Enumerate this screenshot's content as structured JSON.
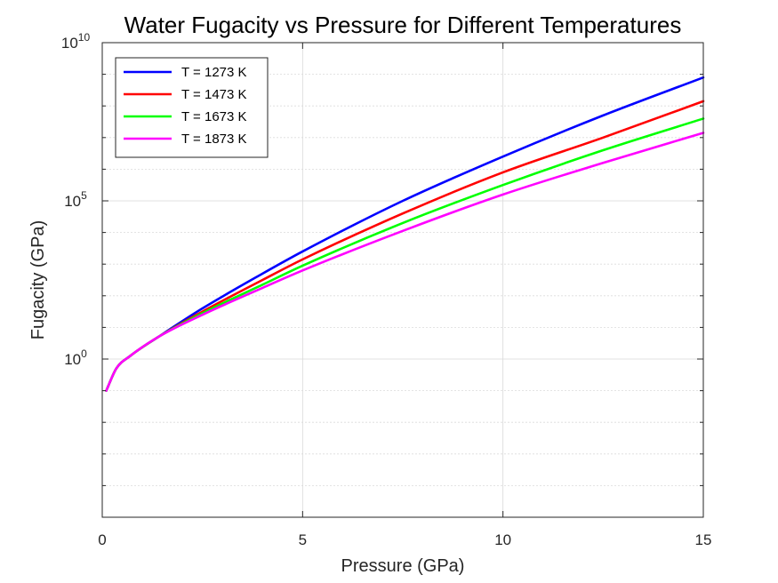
{
  "chart_data": {
    "type": "line",
    "title": "Water Fugacity vs Pressure for Different Temperatures",
    "xlabel": "Pressure (GPa)",
    "ylabel": "Fugacity (GPa)",
    "xlim": [
      0,
      15
    ],
    "ylim_log10": [
      -5,
      10
    ],
    "y_scale": "log",
    "grid": true,
    "legend_position": "top-left",
    "x_ticks": [
      0,
      5,
      10,
      15
    ],
    "x_tick_labels": [
      "0",
      "5",
      "10",
      "15"
    ],
    "y_ticks": [
      {
        "base": "10",
        "exp": "0",
        "value_log10": 0
      },
      {
        "base": "10",
        "exp": "5",
        "value_log10": 5
      },
      {
        "base": "10",
        "exp": "10",
        "value_log10": 10
      }
    ],
    "x": [
      0.1,
      0.35,
      0.7,
      1.4,
      2.5,
      4,
      5,
      7.5,
      10,
      12.5,
      15
    ],
    "series": [
      {
        "name": "T = 1273 K",
        "color": "#0000ff",
        "log10_values": [
          -1,
          -0.3,
          0.1,
          0.7,
          1.6,
          2.7,
          3.4,
          5.0,
          6.4,
          7.7,
          8.9
        ]
      },
      {
        "name": "T = 1473 K",
        "color": "#ff0000",
        "log10_values": [
          -1,
          -0.3,
          0.1,
          0.7,
          1.5,
          2.5,
          3.15,
          4.6,
          5.9,
          7.0,
          8.15
        ]
      },
      {
        "name": "T = 1673 K",
        "color": "#00ff00",
        "log10_values": [
          -1,
          -0.3,
          0.1,
          0.7,
          1.45,
          2.35,
          2.95,
          4.3,
          5.5,
          6.6,
          7.6
        ]
      },
      {
        "name": "T = 1873 K",
        "color": "#ff00ff",
        "log10_values": [
          -1,
          -0.3,
          0.1,
          0.7,
          1.4,
          2.25,
          2.8,
          4.05,
          5.2,
          6.2,
          7.15
        ]
      }
    ]
  }
}
